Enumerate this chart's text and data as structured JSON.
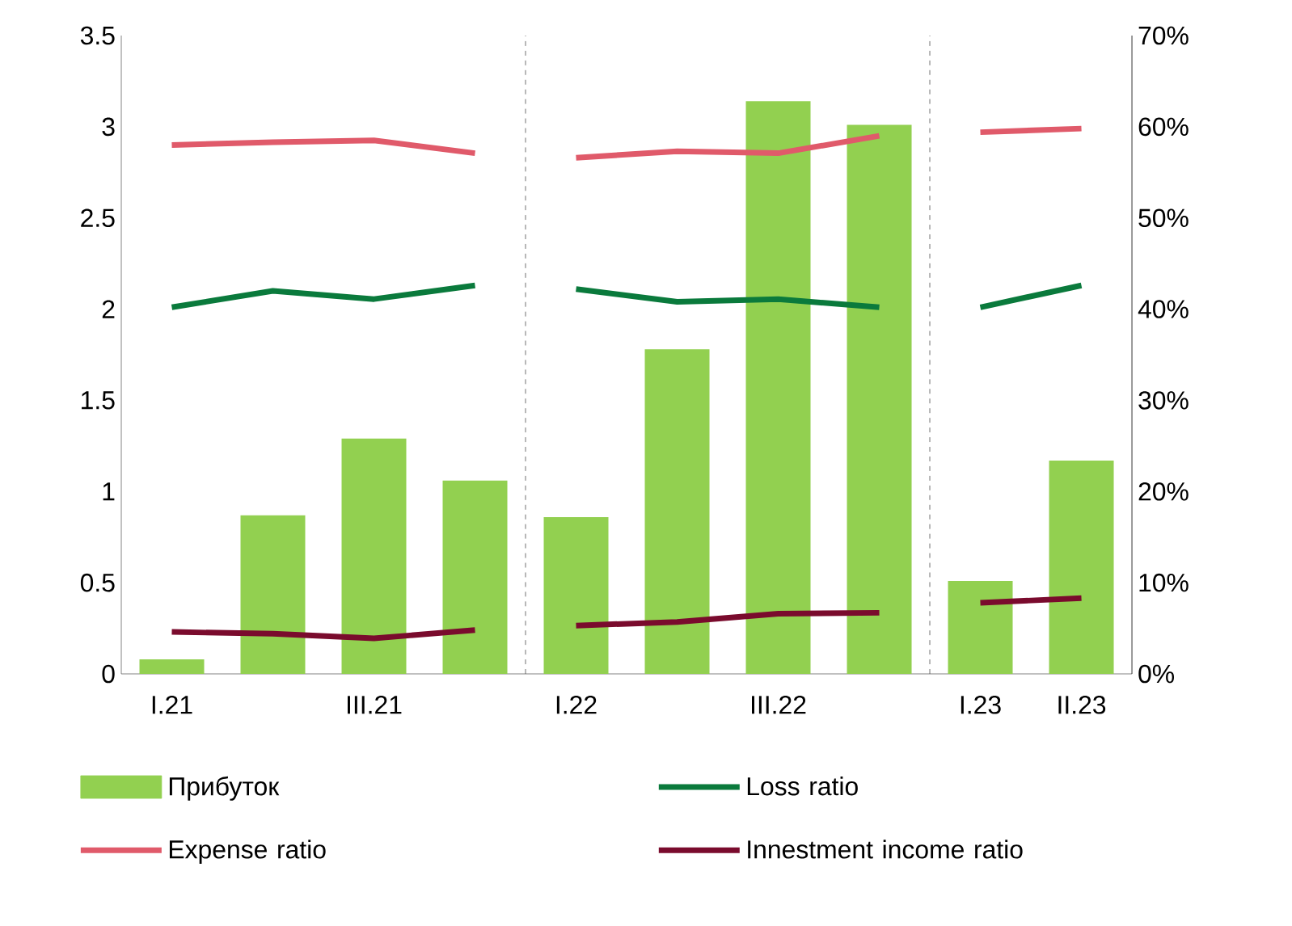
{
  "chart_data": {
    "type": "bar",
    "categories": [
      "I.21",
      null,
      "III.21",
      null,
      "I.22",
      null,
      "III.22",
      null,
      "I.23",
      "II.23"
    ],
    "series": [
      {
        "name": "Прибуток",
        "color": "#92d050",
        "values": [
          0.08,
          0.87,
          1.29,
          1.06,
          0.86,
          1.78,
          3.14,
          3.01,
          0.51,
          1.17
        ]
      },
      {
        "name": "Loss ratio",
        "type": "line",
        "axis": "y2",
        "color": "#0a7a3c",
        "values": [
          40.2,
          42.0,
          41.1,
          42.6,
          null,
          null,
          null,
          null,
          null,
          null
        ]
      },
      {
        "type": "line",
        "axis": "y2",
        "color": "#0a7a3c",
        "values": [
          null,
          null,
          null,
          null,
          42.2,
          40.8,
          41.1,
          40.2,
          null,
          null
        ]
      },
      {
        "type": "line",
        "axis": "y2",
        "color": "#0a7a3c",
        "values": [
          null,
          null,
          null,
          null,
          null,
          null,
          null,
          null,
          40.2,
          42.6
        ]
      },
      {
        "name": "Expense ratio",
        "type": "line",
        "axis": "y2",
        "color": "#e05a6a",
        "values": [
          58.0,
          58.3,
          58.5,
          57.1,
          null,
          null,
          null,
          null,
          null,
          null
        ]
      },
      {
        "type": "line",
        "axis": "y2",
        "color": "#e05a6a",
        "values": [
          null,
          null,
          null,
          null,
          56.6,
          57.3,
          57.1,
          59.0,
          null,
          null
        ]
      },
      {
        "type": "line",
        "axis": "y2",
        "color": "#e05a6a",
        "values": [
          null,
          null,
          null,
          null,
          null,
          null,
          null,
          null,
          59.4,
          59.8
        ]
      },
      {
        "name": "Innestment income ratio",
        "type": "line",
        "axis": "y2",
        "color": "#7a0b2d",
        "values": [
          4.6,
          4.4,
          3.9,
          4.8,
          null,
          null,
          null,
          null,
          null,
          null
        ]
      },
      {
        "type": "line",
        "axis": "y2",
        "color": "#7a0b2d",
        "values": [
          null,
          null,
          null,
          null,
          5.3,
          5.7,
          6.6,
          6.7,
          null,
          null
        ]
      },
      {
        "type": "line",
        "axis": "y2",
        "color": "#7a0b2d",
        "values": [
          null,
          null,
          null,
          null,
          null,
          null,
          null,
          null,
          7.8,
          8.3
        ]
      }
    ],
    "ylim": [
      0,
      3.5
    ],
    "yticks": [
      0,
      0.5,
      1,
      1.5,
      2,
      2.5,
      3,
      3.5
    ],
    "y2lim": [
      0,
      70
    ],
    "y2ticks": [
      {
        "value": 0,
        "label": "0%"
      },
      {
        "value": 10,
        "label": "10%"
      },
      {
        "value": 20,
        "label": "20%"
      },
      {
        "value": 30,
        "label": "30%"
      },
      {
        "value": 40,
        "label": "40%"
      },
      {
        "value": 50,
        "label": "50%"
      },
      {
        "value": 60,
        "label": "60%"
      },
      {
        "value": 70,
        "label": "70%"
      }
    ],
    "legend": "bottom",
    "grid": false,
    "marker": "none",
    "line_style": "solid"
  }
}
